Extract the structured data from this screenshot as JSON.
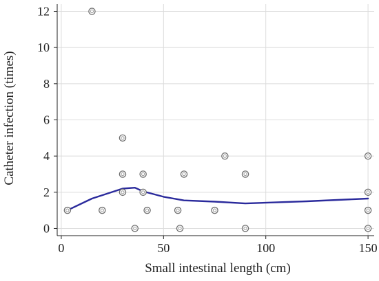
{
  "chart_data": {
    "type": "scatter",
    "title": "",
    "xlabel": "Small intestinal length (cm)",
    "ylabel": "Catheter infection (times)",
    "xlim": [
      -2,
      153
    ],
    "ylim": [
      -0.4,
      12.4
    ],
    "xticks": [
      0,
      50,
      100,
      150
    ],
    "yticks": [
      0,
      2,
      4,
      6,
      8,
      10,
      12
    ],
    "grid": true,
    "legend": "none",
    "points": [
      {
        "x": 3,
        "y": 1
      },
      {
        "x": 15,
        "y": 12
      },
      {
        "x": 20,
        "y": 1
      },
      {
        "x": 30,
        "y": 5
      },
      {
        "x": 30,
        "y": 3
      },
      {
        "x": 30,
        "y": 2
      },
      {
        "x": 36,
        "y": 0
      },
      {
        "x": 40,
        "y": 3
      },
      {
        "x": 40,
        "y": 2
      },
      {
        "x": 42,
        "y": 1
      },
      {
        "x": 57,
        "y": 1
      },
      {
        "x": 58,
        "y": 0
      },
      {
        "x": 60,
        "y": 3
      },
      {
        "x": 75,
        "y": 1
      },
      {
        "x": 80,
        "y": 4
      },
      {
        "x": 90,
        "y": 3
      },
      {
        "x": 90,
        "y": 0
      },
      {
        "x": 150,
        "y": 4
      },
      {
        "x": 150,
        "y": 2
      },
      {
        "x": 150,
        "y": 1
      },
      {
        "x": 150,
        "y": 0
      }
    ],
    "fit_line": [
      {
        "x": 3,
        "y": 1.0
      },
      {
        "x": 15,
        "y": 1.65
      },
      {
        "x": 30,
        "y": 2.2
      },
      {
        "x": 36,
        "y": 2.25
      },
      {
        "x": 40,
        "y": 2.05
      },
      {
        "x": 50,
        "y": 1.75
      },
      {
        "x": 60,
        "y": 1.55
      },
      {
        "x": 75,
        "y": 1.48
      },
      {
        "x": 90,
        "y": 1.38
      },
      {
        "x": 120,
        "y": 1.5
      },
      {
        "x": 150,
        "y": 1.65
      }
    ],
    "fit_color": "#2a2a9c"
  }
}
